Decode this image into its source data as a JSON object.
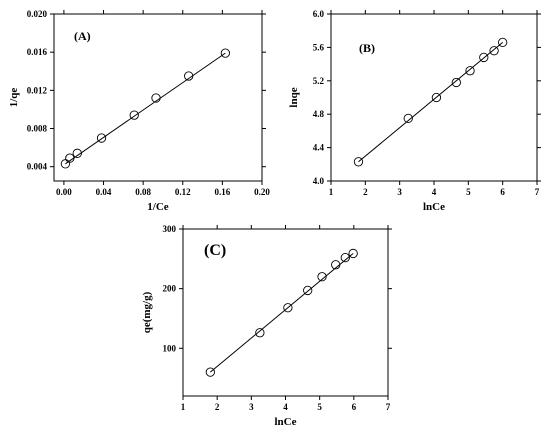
{
  "chart_data": [
    {
      "type": "scatter",
      "panel_label": "(A)",
      "xlabel": "1/Ce",
      "ylabel": "1/qe",
      "xlim": [
        -0.01,
        0.2
      ],
      "ylim": [
        0.0025,
        0.02
      ],
      "xticks": [
        0.0,
        0.04,
        0.08,
        0.12,
        0.16,
        0.2
      ],
      "xtick_labels": [
        "0.00",
        "0.04",
        "0.08",
        "0.12",
        "0.16",
        "0.20"
      ],
      "yticks": [
        0.004,
        0.008,
        0.012,
        0.016,
        0.02
      ],
      "ytick_labels": [
        "0.004",
        "0.008",
        "0.012",
        "0.016",
        "0.020"
      ],
      "grid": false,
      "series": [
        {
          "x": [
            0.0015,
            0.006,
            0.0135,
            0.038,
            0.071,
            0.093,
            0.126,
            0.163
          ],
          "y": [
            0.0043,
            0.0049,
            0.0054,
            0.007,
            0.0094,
            0.0112,
            0.0135,
            0.0159
          ],
          "marker": "open-circle"
        }
      ],
      "fit_line": {
        "x": [
          0.0015,
          0.163
        ],
        "y": [
          0.0043,
          0.0159
        ]
      }
    },
    {
      "type": "scatter",
      "panel_label": "(B)",
      "xlabel": "lnCe",
      "ylabel": "lnqe",
      "xlim": [
        1,
        7
      ],
      "ylim": [
        4.0,
        6.0
      ],
      "xticks": [
        1,
        2,
        3,
        4,
        5,
        6,
        7
      ],
      "xtick_labels": [
        "1",
        "2",
        "3",
        "4",
        "5",
        "6",
        "7"
      ],
      "yticks": [
        4.0,
        4.4,
        4.8,
        5.2,
        5.6,
        6.0
      ],
      "ytick_labels": [
        "4.0",
        "4.4",
        "4.8",
        "5.2",
        "5.6",
        "6.0"
      ],
      "grid": false,
      "series": [
        {
          "x": [
            1.8,
            3.25,
            4.07,
            4.65,
            5.05,
            5.45,
            5.75,
            6.0
          ],
          "y": [
            4.23,
            4.75,
            5.0,
            5.18,
            5.32,
            5.48,
            5.56,
            5.66
          ],
          "marker": "open-circle"
        }
      ],
      "fit_line": {
        "x": [
          1.8,
          6.0
        ],
        "y": [
          4.23,
          5.66
        ]
      }
    },
    {
      "type": "scatter",
      "panel_label": "(C)",
      "xlabel": "lnCe",
      "ylabel": "qe(mg/g)",
      "xlim": [
        1,
        7
      ],
      "ylim": [
        20,
        300
      ],
      "xticks": [
        1,
        2,
        3,
        4,
        5,
        6,
        7
      ],
      "xtick_labels": [
        "1",
        "2",
        "3",
        "4",
        "5",
        "6",
        "7"
      ],
      "yticks": [
        100,
        200,
        300
      ],
      "ytick_labels": [
        "100",
        "200",
        "300"
      ],
      "grid": false,
      "series": [
        {
          "x": [
            1.8,
            3.25,
            4.07,
            4.65,
            5.07,
            5.47,
            5.75,
            5.98
          ],
          "y": [
            60,
            126,
            168,
            197,
            220,
            240,
            252,
            259
          ],
          "marker": "open-circle"
        }
      ],
      "fit_line": {
        "x": [
          1.8,
          5.98
        ],
        "y": [
          60,
          259
        ]
      }
    }
  ]
}
